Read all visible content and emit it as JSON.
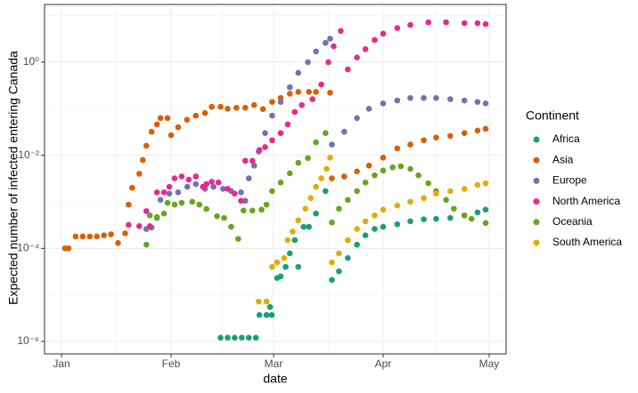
{
  "chart_data": {
    "type": "scatter",
    "xlabel": "date",
    "ylabel": "Expected number of infected entering Canada",
    "legend_title": "Continent",
    "legend": "right",
    "log_y": true,
    "grid": true,
    "xlim": [
      -4.8,
      125.8
    ],
    "xticks": [
      {
        "value": 0,
        "label": "Jan"
      },
      {
        "value": 31,
        "label": "Feb"
      },
      {
        "value": 60,
        "label": "Mar"
      },
      {
        "value": 91,
        "label": "Apr"
      },
      {
        "value": 121,
        "label": "May"
      }
    ],
    "ylim": [
      5.4e-07,
      17.4
    ],
    "yticks": [
      {
        "value": 1e-06,
        "label": "10⁻⁶"
      },
      {
        "value": 0.0001,
        "label": "10⁻⁴"
      },
      {
        "value": 0.01,
        "label": "10⁻²"
      },
      {
        "value": 1,
        "label": "10⁰"
      }
    ],
    "series": [
      {
        "name": "Africa",
        "color": "#1b9e77",
        "x": [
          45,
          47,
          49,
          51,
          53,
          55,
          56,
          58,
          59,
          59.5,
          61,
          62,
          63.4,
          64.6,
          66,
          67,
          68.5,
          70,
          72,
          74.7,
          76.5,
          78.5,
          81,
          83.6,
          86,
          88.6,
          91,
          95,
          98.7,
          102.5,
          106,
          110,
          114,
          117.7,
          120
        ],
        "values": [
          1.2e-06,
          1.2e-06,
          1.2e-06,
          1.2e-06,
          1.2e-06,
          1.2e-06,
          3.7e-06,
          3.7e-06,
          5.5e-06,
          3.7e-06,
          2.3e-05,
          2.5e-05,
          4e-05,
          7.8e-05,
          0.00015,
          4e-05,
          0.00029,
          0.00029,
          0.00056,
          0.0017,
          2.1e-05,
          3.2e-05,
          6.2e-05,
          0.00012,
          0.00019,
          0.00026,
          0.00029,
          0.00033,
          0.00038,
          0.00042,
          0.00043,
          0.00045,
          0.00051,
          0.00059,
          0.00068
        ]
      },
      {
        "name": "Asia",
        "color": "#d95f02",
        "x": [
          1,
          2,
          4,
          6,
          8,
          10,
          12,
          14,
          16,
          18,
          19,
          20,
          22,
          23,
          24,
          25.5,
          27,
          28,
          30,
          31,
          33,
          35.5,
          38,
          40.6,
          42.5,
          45,
          47,
          49.5,
          52,
          54.5,
          57,
          59.6,
          62,
          64.6,
          67,
          70,
          72,
          76,
          76.5,
          80,
          83.6,
          87,
          91,
          95,
          98.7,
          102.5,
          106,
          110,
          114,
          117.7,
          120
        ],
        "values": [
          0.0001,
          0.0001,
          0.00018,
          0.00018,
          0.00018,
          0.00018,
          0.00019,
          0.0002,
          0.00013,
          0.00021,
          0.00087,
          0.002,
          0.004,
          0.0079,
          0.016,
          0.032,
          0.046,
          0.063,
          0.063,
          0.027,
          0.04,
          0.058,
          0.071,
          0.081,
          0.11,
          0.11,
          0.1,
          0.105,
          0.105,
          0.12,
          0.098,
          0.14,
          0.17,
          0.21,
          0.23,
          0.23,
          0.23,
          0.22,
          0.0032,
          0.0035,
          0.0045,
          0.006,
          0.0089,
          0.014,
          0.017,
          0.021,
          0.024,
          0.026,
          0.03,
          0.034,
          0.037
        ]
      },
      {
        "name": "Europe",
        "color": "#7570b3",
        "x": [
          24,
          25.5,
          27,
          28,
          30.5,
          33,
          35.6,
          38,
          40.6,
          43,
          45.7,
          48,
          50.8,
          52,
          53,
          54.5,
          55.8,
          57.6,
          59.6,
          62,
          64.6,
          67,
          69.7,
          72,
          74.7,
          76,
          76.5,
          80,
          83.6,
          87,
          91,
          95,
          98.7,
          102.5,
          106,
          110,
          114,
          117.7,
          120
        ],
        "values": [
          0.00026,
          0.00028,
          0.00045,
          0.0011,
          0.0015,
          0.0016,
          0.0021,
          0.0024,
          0.0019,
          0.0021,
          0.0019,
          0.0017,
          0.0016,
          0.00105,
          0.0032,
          0.006,
          0.012,
          0.03,
          0.071,
          0.14,
          0.29,
          0.59,
          1,
          1.7,
          2.6,
          3.2,
          0.017,
          0.032,
          0.063,
          0.1,
          0.13,
          0.15,
          0.17,
          0.17,
          0.17,
          0.16,
          0.15,
          0.14,
          0.13
        ]
      },
      {
        "name": "North America",
        "color": "#e7298a",
        "x": [
          19,
          22,
          24,
          25,
          27,
          29,
          30.5,
          32,
          34,
          36,
          38,
          40,
          41,
          42.5,
          44.4,
          47,
          49,
          50.8,
          52,
          54,
          56,
          57.6,
          59.6,
          62,
          64,
          66,
          68,
          71,
          73.5,
          75.5,
          77,
          79,
          81,
          83.6,
          86,
          88.6,
          91,
          95,
          98.7,
          103.8,
          108.8,
          114,
          117.7,
          120
        ],
        "values": [
          0.00032,
          0.0003,
          0.00063,
          0.0003,
          0.0016,
          0.0016,
          0.0021,
          0.0032,
          0.0035,
          0.003,
          0.0035,
          0.0021,
          0.0024,
          0.0027,
          0.0026,
          0.0019,
          0.0015,
          0.00105,
          0.0076,
          0.0076,
          0.013,
          0.015,
          0.021,
          0.03,
          0.046,
          0.085,
          0.12,
          0.16,
          0.33,
          1,
          2.2,
          4.7,
          0.7,
          1.26,
          1.9,
          3,
          4.1,
          5.4,
          6.3,
          7.2,
          7.2,
          6.9,
          6.9,
          6.6
        ]
      },
      {
        "name": "Oceania",
        "color": "#66a61e",
        "x": [
          24,
          25,
          27,
          29,
          30,
          32,
          34,
          37,
          39,
          41,
          44,
          46,
          48,
          50,
          51.5,
          54,
          56.6,
          58,
          59.6,
          62,
          64.6,
          67,
          69.7,
          72,
          74.7,
          76.5,
          78.5,
          81,
          83.6,
          86,
          88.6,
          91,
          93.7,
          96,
          98.7,
          101,
          103.8,
          106,
          108.8,
          111,
          114,
          116,
          120
        ],
        "values": [
          0.00012,
          0.00051,
          0.00047,
          0.00056,
          0.00095,
          0.00087,
          0.00095,
          0.001,
          0.00087,
          0.0007,
          0.00049,
          0.00045,
          0.00029,
          0.00016,
          0.00065,
          0.00065,
          0.00068,
          0.00087,
          0.0017,
          0.0026,
          0.0041,
          0.0069,
          0.0087,
          0.019,
          0.03,
          0.00036,
          0.00071,
          0.0011,
          0.0017,
          0.0026,
          0.0037,
          0.0047,
          0.0055,
          0.0058,
          0.0051,
          0.0037,
          0.0025,
          0.0017,
          0.0011,
          0.00071,
          0.00051,
          0.00043,
          0.00035
        ]
      },
      {
        "name": "South America",
        "color": "#e6ab02",
        "x": [
          55.8,
          58,
          59.6,
          61,
          63,
          64,
          65.4,
          67,
          69,
          70.5,
          72,
          73.5,
          75,
          76,
          76.5,
          78.5,
          81,
          83.6,
          86,
          88.6,
          91,
          95,
          98.7,
          102.5,
          106,
          110,
          114,
          117.7,
          120
        ],
        "values": [
          7.2e-06,
          7.2e-06,
          4e-05,
          5e-05,
          6.2e-05,
          0.00015,
          0.00023,
          0.0004,
          0.00071,
          0.0012,
          0.0021,
          0.0032,
          0.0051,
          0.0089,
          5e-05,
          7.8e-05,
          0.00015,
          0.00026,
          0.00038,
          0.00051,
          0.00068,
          0.00083,
          0.001,
          0.0012,
          0.0015,
          0.0017,
          0.0019,
          0.0023,
          0.0025
        ]
      }
    ]
  }
}
